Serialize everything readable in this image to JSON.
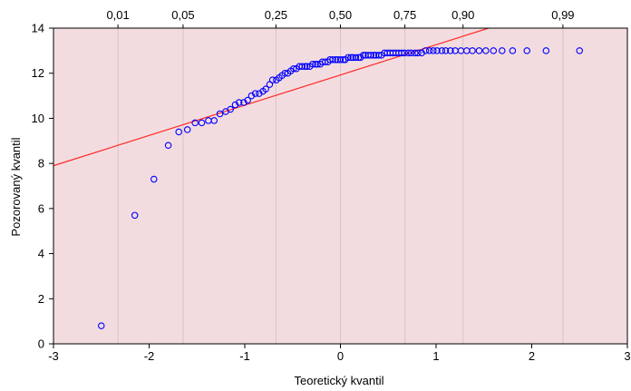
{
  "chart_data": {
    "type": "scatter",
    "title": "",
    "xlabel": "Teoretický kvantil",
    "ylabel": "Pozorovaný kvantil",
    "xlim": [
      -3,
      3
    ],
    "ylim": [
      0,
      14
    ],
    "xticks": [
      "-3",
      "-2",
      "-1",
      "0",
      "1",
      "2",
      "3"
    ],
    "yticks": [
      "0",
      "2",
      "4",
      "6",
      "8",
      "10",
      "12",
      "14"
    ],
    "prob_ticks": [
      {
        "label": "0,01",
        "z": -2.326
      },
      {
        "label": "0,05",
        "z": -1.645
      },
      {
        "label": "0,25",
        "z": -0.674
      },
      {
        "label": "0,50",
        "z": 0
      },
      {
        "label": "0,75",
        "z": 0.674
      },
      {
        "label": "0,90",
        "z": 1.282
      },
      {
        "label": "0,99",
        "z": 2.326
      }
    ],
    "reference_line": {
      "x": [
        -3,
        1.55
      ],
      "y": [
        7.9,
        14
      ]
    },
    "series": [
      {
        "x": [
          -2.5,
          -2.15,
          -1.95,
          -1.8,
          -1.69,
          -1.6,
          -1.52,
          -1.45,
          -1.38,
          -1.32,
          -1.26,
          -1.2,
          -1.15,
          -1.1,
          -1.06,
          -1.01,
          -0.97,
          -0.93,
          -0.89,
          -0.85,
          -0.81,
          -0.78,
          -0.74,
          -0.71,
          -0.67,
          -0.64,
          -0.61,
          -0.58,
          -0.55,
          -0.52,
          -0.49,
          -0.46,
          -0.43,
          -0.4,
          -0.37,
          -0.35,
          -0.32,
          -0.29,
          -0.26,
          -0.24,
          -0.21,
          -0.19,
          -0.16,
          -0.13,
          -0.11,
          -0.08,
          -0.05,
          -0.03,
          0.0,
          0.03,
          0.05,
          0.08,
          0.11,
          0.13,
          0.16,
          0.19,
          0.21,
          0.24,
          0.26,
          0.29,
          0.32,
          0.35,
          0.37,
          0.4,
          0.43,
          0.46,
          0.49,
          0.52,
          0.55,
          0.58,
          0.61,
          0.64,
          0.67,
          0.71,
          0.74,
          0.78,
          0.81,
          0.85,
          0.89,
          0.93,
          0.97,
          1.01,
          1.06,
          1.1,
          1.15,
          1.2,
          1.26,
          1.32,
          1.38,
          1.45,
          1.52,
          1.6,
          1.69,
          1.8,
          1.95,
          2.15,
          2.5
        ],
        "y": [
          0.8,
          5.7,
          7.3,
          8.8,
          9.4,
          9.5,
          9.8,
          9.8,
          9.9,
          9.9,
          10.2,
          10.3,
          10.4,
          10.6,
          10.7,
          10.7,
          10.8,
          11.0,
          11.1,
          11.1,
          11.2,
          11.3,
          11.5,
          11.7,
          11.7,
          11.8,
          11.9,
          12.0,
          12.0,
          12.1,
          12.2,
          12.2,
          12.3,
          12.3,
          12.3,
          12.3,
          12.3,
          12.4,
          12.4,
          12.4,
          12.4,
          12.5,
          12.5,
          12.5,
          12.6,
          12.6,
          12.6,
          12.6,
          12.6,
          12.6,
          12.6,
          12.7,
          12.7,
          12.7,
          12.7,
          12.7,
          12.7,
          12.8,
          12.8,
          12.8,
          12.8,
          12.8,
          12.8,
          12.8,
          12.8,
          12.9,
          12.9,
          12.9,
          12.9,
          12.9,
          12.9,
          12.9,
          12.9,
          12.9,
          12.9,
          12.9,
          12.9,
          12.9,
          13.0,
          13.0,
          13.0,
          13.0,
          13.0,
          13.0,
          13.0,
          13.0,
          13.0,
          13.0,
          13.0,
          13.0,
          13.0,
          13.0,
          13.0,
          13.0,
          13.0,
          13.0,
          13.0
        ],
        "color": "#0000ff"
      }
    ],
    "colors": {
      "plot_bg": "#f3dcdf",
      "grid": "#d7c3c6",
      "reference_line": "#ff2a2a",
      "axis": "#000000"
    },
    "grid": true
  }
}
